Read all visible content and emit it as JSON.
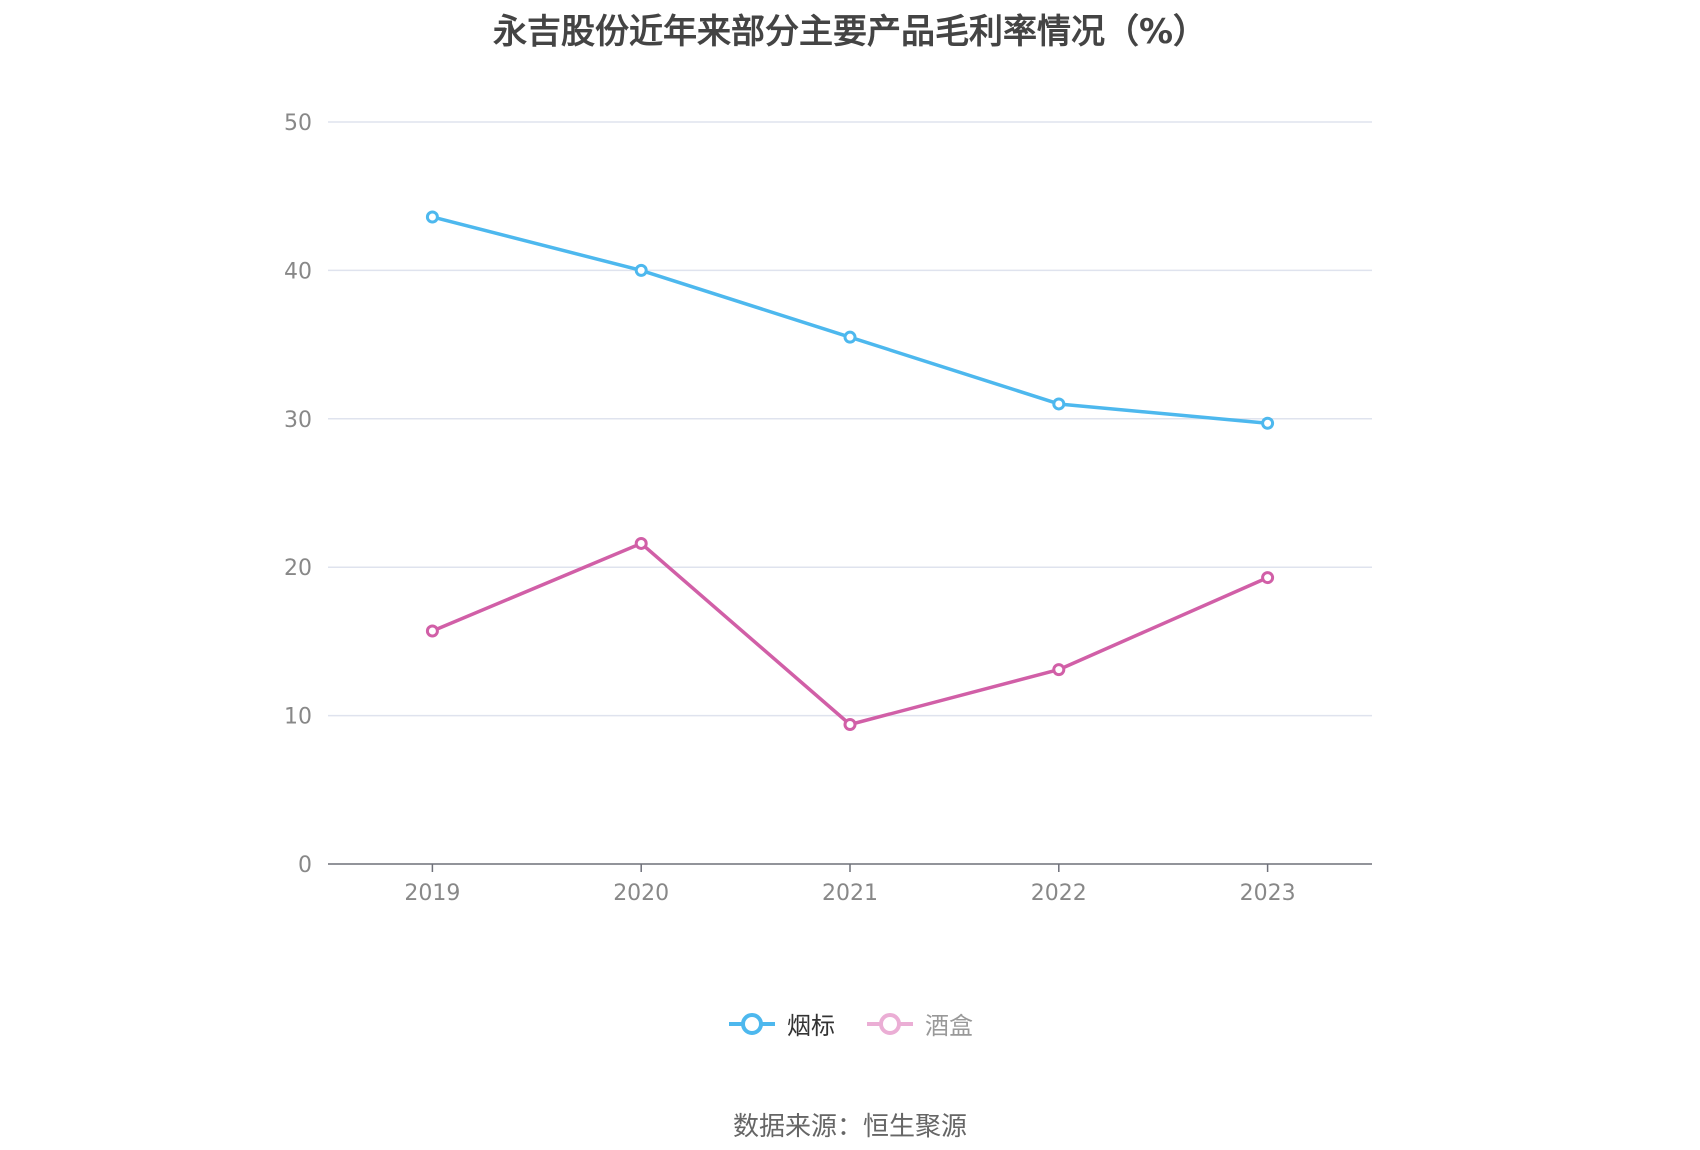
{
  "chart_data": {
    "type": "line",
    "title": "永吉股份近年来部分主要产品毛利率情况（%）",
    "categories": [
      "2019",
      "2020",
      "2021",
      "2022",
      "2023"
    ],
    "y_ticks": [
      "0",
      "10",
      "20",
      "30",
      "40",
      "50"
    ],
    "ylim": [
      0,
      50
    ],
    "grid": true,
    "legend_position": "bottom-center",
    "series": [
      {
        "name": "烟标",
        "color": "#4db8ee",
        "values": [
          43.6,
          40.0,
          35.5,
          31.0,
          29.7
        ]
      },
      {
        "name": "酒盒",
        "color": "#d15fa7",
        "values": [
          15.7,
          21.6,
          9.4,
          13.1,
          19.3
        ]
      }
    ],
    "legend_inactive_color": "#ebaed5"
  },
  "source_text": "数据来源：恒生聚源"
}
